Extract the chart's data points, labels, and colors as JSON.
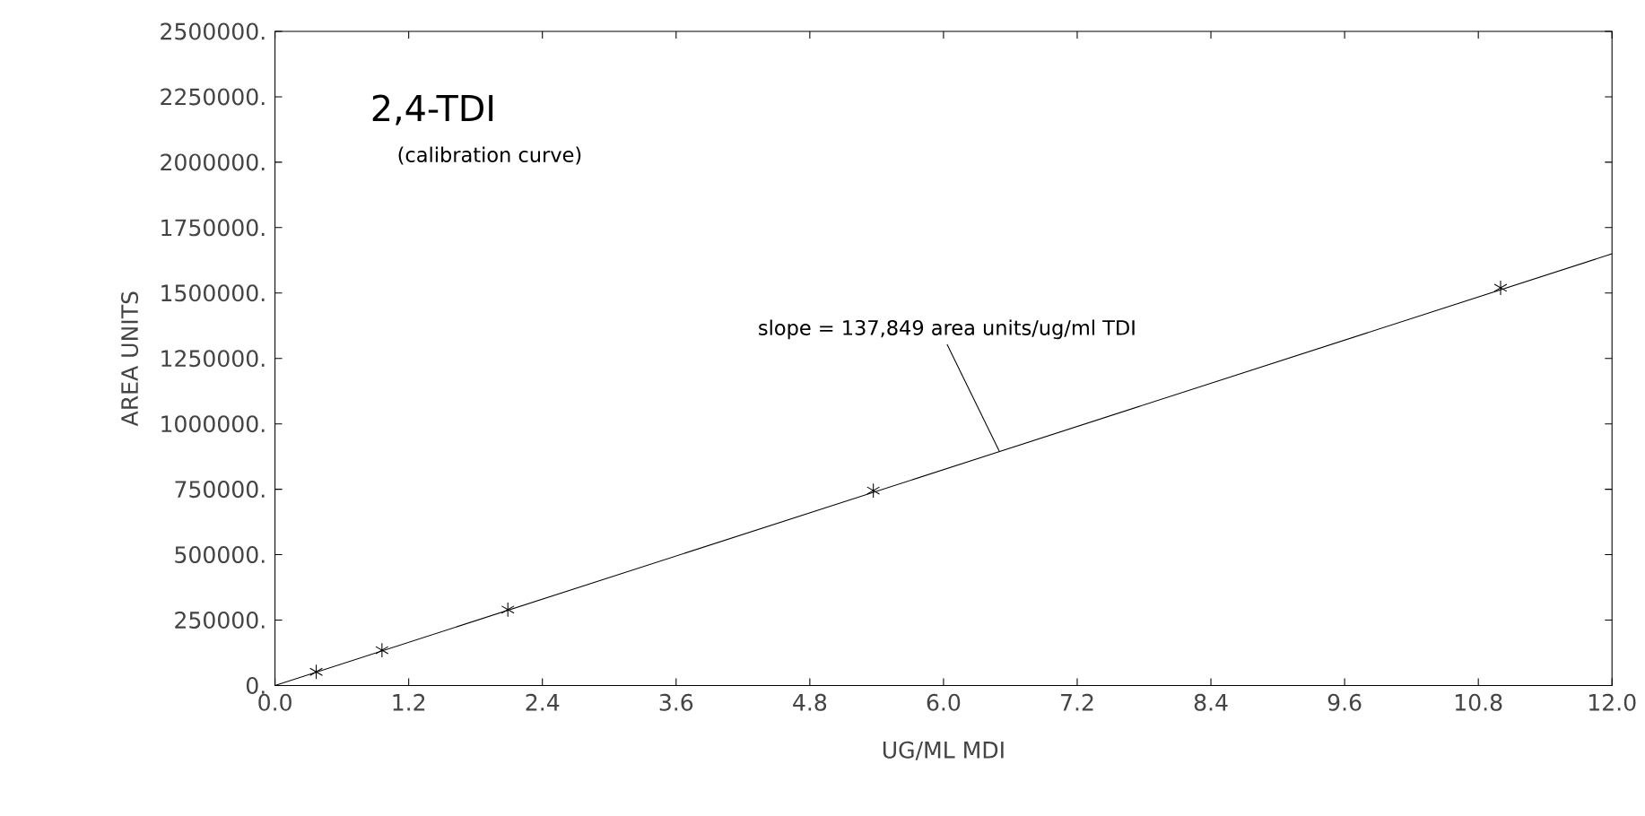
{
  "chart_data": {
    "type": "scatter",
    "title": "2,4-TDI",
    "subtitle": "(calibration curve)",
    "xlabel": "UG/ML MDI",
    "ylabel": "AREA UNITS",
    "annotations": [
      {
        "text": "slope = 137,849 area units/ug/ml TDI",
        "x": 6.5,
        "y": 896000
      }
    ],
    "xlim": [
      0,
      12
    ],
    "ylim": [
      0,
      2500000
    ],
    "xticks": [
      {
        "value": 0,
        "label": "0.0"
      },
      {
        "value": 1.2,
        "label": "1.2"
      },
      {
        "value": 2.4,
        "label": "2.4"
      },
      {
        "value": 3.6,
        "label": "3.6"
      },
      {
        "value": 4.8,
        "label": "4.8"
      },
      {
        "value": 6,
        "label": "6.0"
      },
      {
        "value": 7.2,
        "label": "7.2"
      },
      {
        "value": 8.4,
        "label": "8.4"
      },
      {
        "value": 9.6,
        "label": "9.6"
      },
      {
        "value": 10.8,
        "label": "10.8"
      },
      {
        "value": 12,
        "label": "12.0"
      }
    ],
    "yticks": [
      {
        "value": 0,
        "label": "0."
      },
      {
        "value": 250000,
        "label": "250000."
      },
      {
        "value": 500000,
        "label": "500000."
      },
      {
        "value": 750000,
        "label": "750000."
      },
      {
        "value": 1000000,
        "label": "1000000."
      },
      {
        "value": 1250000,
        "label": "1250000."
      },
      {
        "value": 1500000,
        "label": "1500000."
      },
      {
        "value": 1750000,
        "label": "1750000."
      },
      {
        "value": 2000000,
        "label": "2000000."
      },
      {
        "value": 2250000,
        "label": "2250000."
      },
      {
        "value": 2500000,
        "label": "2500000."
      }
    ],
    "grid": false,
    "series": [
      {
        "color": "#000000",
        "marker": "cross",
        "x": [
          0.37,
          0.96,
          2.09,
          5.37,
          11.0
        ],
        "values": [
          52000,
          135000,
          290000,
          745000,
          1520000
        ]
      },
      {
        "type": "line",
        "color": "#000000",
        "marker": "none",
        "line_style": "solid",
        "x": [
          0,
          12
        ],
        "values": [
          0,
          1650000
        ]
      }
    ]
  }
}
